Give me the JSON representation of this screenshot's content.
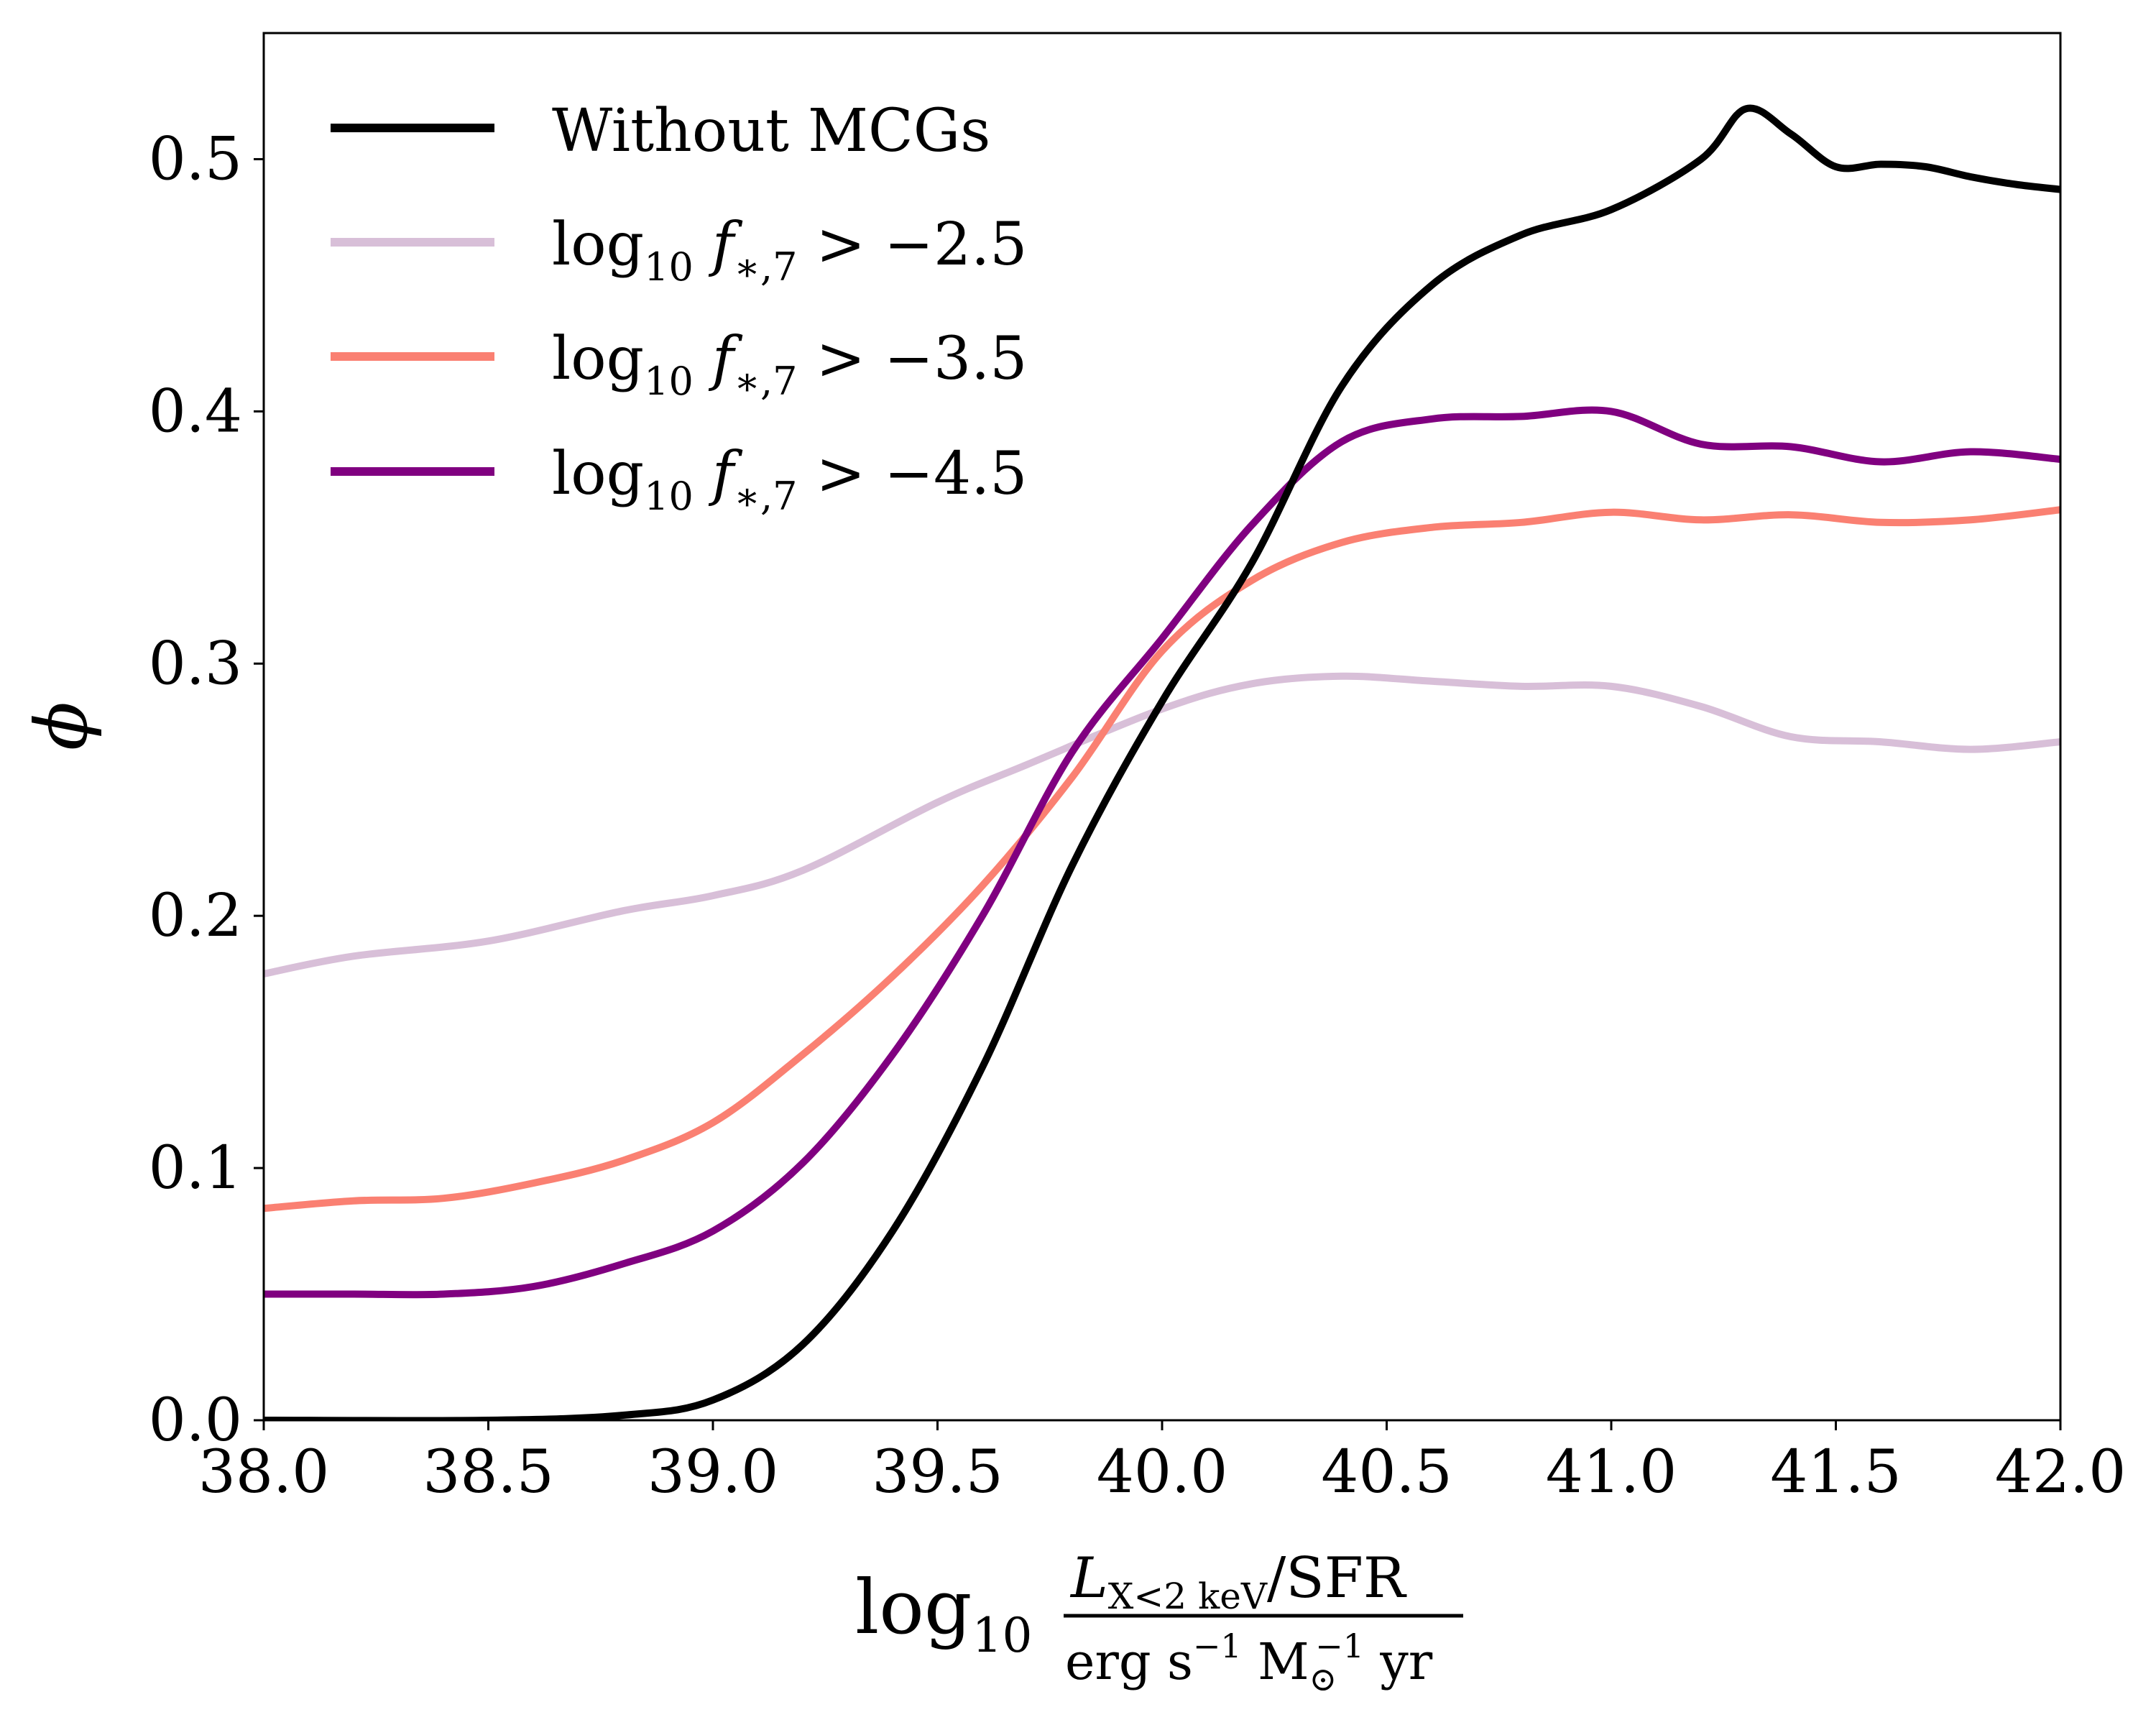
{
  "chart_data": {
    "type": "line",
    "xlabel": {
      "prefix": "log",
      "prefix_sub": "10",
      "numerator_main": "L",
      "numerator_sub": "X<2 keV",
      "numerator_rest": "/SFR",
      "denominator_a": "erg s",
      "denominator_a_exp": "−1",
      "denominator_b": " M",
      "denominator_b_sub": "⊙",
      "denominator_b_exp": "−1",
      "denominator_c": " yr"
    },
    "ylabel": "ϕ",
    "xlim": [
      38.0,
      42.0
    ],
    "ylim": [
      0.0,
      0.55
    ],
    "xticks": [
      "38.0",
      "38.5",
      "39.0",
      "39.5",
      "40.0",
      "40.5",
      "41.0",
      "41.5",
      "42.0"
    ],
    "xtick_values": [
      38.0,
      38.5,
      39.0,
      39.5,
      40.0,
      40.5,
      41.0,
      41.5,
      42.0
    ],
    "yticks": [
      "0.0",
      "0.1",
      "0.2",
      "0.3",
      "0.4",
      "0.5"
    ],
    "ytick_values": [
      0.0,
      0.1,
      0.2,
      0.3,
      0.4,
      0.5
    ],
    "legend_position": "upper-left",
    "series": [
      {
        "name": "Without MCGs",
        "color": "#000000",
        "legend": {
          "text": "Without MCGs"
        },
        "x": [
          38.0,
          38.5,
          38.8,
          39.0,
          39.2,
          39.4,
          39.6,
          39.8,
          40.0,
          40.2,
          40.4,
          40.6,
          40.8,
          41.0,
          41.2,
          41.3,
          41.4,
          41.5,
          41.6,
          41.7,
          41.8,
          41.9,
          42.0
        ],
        "values": [
          0.0,
          0.0,
          0.002,
          0.008,
          0.03,
          0.075,
          0.14,
          0.22,
          0.285,
          0.34,
          0.41,
          0.45,
          0.47,
          0.48,
          0.5,
          0.52,
          0.51,
          0.497,
          0.498,
          0.497,
          0.493,
          0.49,
          0.488
        ]
      },
      {
        "name": "log10 f*,7 > -2.5",
        "color": "#d8bfd8",
        "legend": {
          "main": "log",
          "sub": "10",
          "f": " f",
          "fsub": "∗,7",
          "rest": " > −2.5"
        },
        "x": [
          38.0,
          38.2,
          38.5,
          38.8,
          39.0,
          39.2,
          39.5,
          39.7,
          40.0,
          40.2,
          40.4,
          40.6,
          40.8,
          41.0,
          41.2,
          41.4,
          41.6,
          41.8,
          42.0
        ],
        "values": [
          0.177,
          0.184,
          0.19,
          0.202,
          0.208,
          0.218,
          0.245,
          0.26,
          0.282,
          0.292,
          0.295,
          0.293,
          0.291,
          0.291,
          0.283,
          0.271,
          0.269,
          0.266,
          0.269
        ]
      },
      {
        "name": "log10 f*,7 > -3.5",
        "color": "#fa8072",
        "legend": {
          "main": "log",
          "sub": "10",
          "f": " f",
          "fsub": "∗,7",
          "rest": " > −3.5"
        },
        "x": [
          38.0,
          38.2,
          38.4,
          38.6,
          38.8,
          39.0,
          39.2,
          39.4,
          39.6,
          39.8,
          40.0,
          40.2,
          40.4,
          40.6,
          40.8,
          41.0,
          41.2,
          41.4,
          41.6,
          41.8,
          42.0
        ],
        "values": [
          0.084,
          0.087,
          0.088,
          0.094,
          0.103,
          0.118,
          0.145,
          0.176,
          0.212,
          0.255,
          0.305,
          0.333,
          0.348,
          0.354,
          0.356,
          0.36,
          0.357,
          0.359,
          0.356,
          0.357,
          0.361
        ]
      },
      {
        "name": "log10 f*,7 > -4.5",
        "color": "#800080",
        "legend": {
          "main": "log",
          "sub": "10",
          "f": " f",
          "fsub": "∗,7",
          "rest": " > −4.5"
        },
        "x": [
          38.0,
          38.2,
          38.4,
          38.6,
          38.8,
          39.0,
          39.2,
          39.4,
          39.6,
          39.8,
          40.0,
          40.2,
          40.4,
          40.6,
          40.8,
          41.0,
          41.2,
          41.4,
          41.6,
          41.8,
          42.0
        ],
        "values": [
          0.05,
          0.05,
          0.05,
          0.053,
          0.062,
          0.075,
          0.102,
          0.145,
          0.2,
          0.265,
          0.31,
          0.355,
          0.388,
          0.397,
          0.398,
          0.4,
          0.387,
          0.386,
          0.38,
          0.384,
          0.381
        ]
      }
    ]
  }
}
